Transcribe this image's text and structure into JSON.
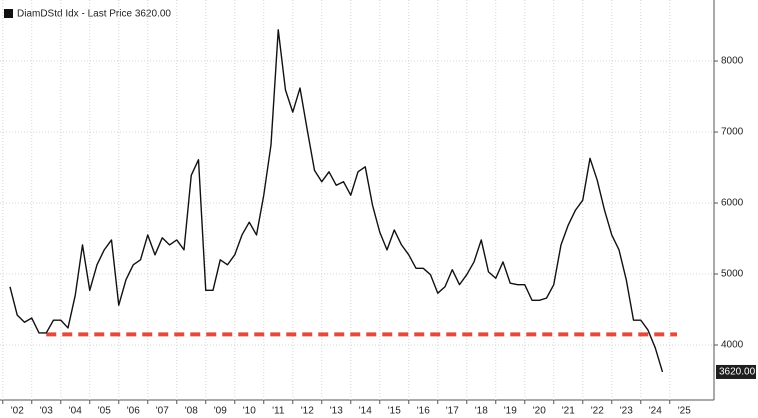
{
  "chart_data": {
    "type": "line",
    "categories": [
      null,
      "'02",
      null,
      null,
      null,
      "'03",
      null,
      null,
      null,
      "'04",
      null,
      null,
      null,
      "'05",
      null,
      null,
      null,
      "'06",
      null,
      null,
      null,
      "'07",
      null,
      null,
      null,
      "'08",
      null,
      null,
      null,
      "'09",
      null,
      null,
      null,
      "'10",
      null,
      null,
      null,
      "'11",
      null,
      null,
      null,
      "'12",
      null,
      null,
      null,
      "'13",
      null,
      null,
      null,
      "'14",
      null,
      null,
      null,
      "'15",
      null,
      null,
      null,
      "'16",
      null,
      null,
      null,
      "'17",
      null,
      null,
      null,
      "'18",
      null,
      null,
      null,
      "'19",
      null,
      null,
      null,
      "'20",
      null,
      null,
      null,
      "'21",
      null,
      null,
      null,
      "'22",
      null,
      null,
      null,
      "'23",
      null,
      null,
      null,
      "'24",
      null,
      null,
      null,
      "'25"
    ],
    "series": [
      {
        "name": "DiamDStd Idx - Last Price 3620.00",
        "color": "#111111",
        "values": [
          4820,
          4420,
          4320,
          4380,
          4170,
          4170,
          4350,
          4350,
          4240,
          4700,
          5410,
          4770,
          5130,
          5340,
          5480,
          4560,
          4920,
          5130,
          5200,
          5550,
          5270,
          5510,
          5410,
          5480,
          5340,
          6390,
          6610,
          4770,
          4770,
          5200,
          5130,
          5270,
          5550,
          5730,
          5550,
          6110,
          6820,
          8440,
          7590,
          7280,
          7620,
          7030,
          6460,
          6300,
          6440,
          6250,
          6300,
          6110,
          6440,
          6510,
          5970,
          5590,
          5340,
          5620,
          5410,
          5270,
          5080,
          5080,
          4990,
          4730,
          4820,
          5060,
          4850,
          4990,
          5170,
          5480,
          5030,
          4940,
          5170,
          4870,
          4850,
          4850,
          4630,
          4630,
          4660,
          4850,
          5410,
          5690,
          5900,
          6040,
          6630,
          6320,
          5900,
          5550,
          5340,
          4920,
          4350,
          4350,
          4210,
          3960,
          3620,
          null,
          null,
          null
        ]
      }
    ],
    "last_label": {
      "value": 3620,
      "label": "3620.00"
    },
    "hline": {
      "value": 4150,
      "color": "#e8473c"
    },
    "ylim": [
      3225,
      8860
    ],
    "yticks": [
      4000,
      5000,
      6000,
      7000,
      8000
    ],
    "grid": true
  }
}
